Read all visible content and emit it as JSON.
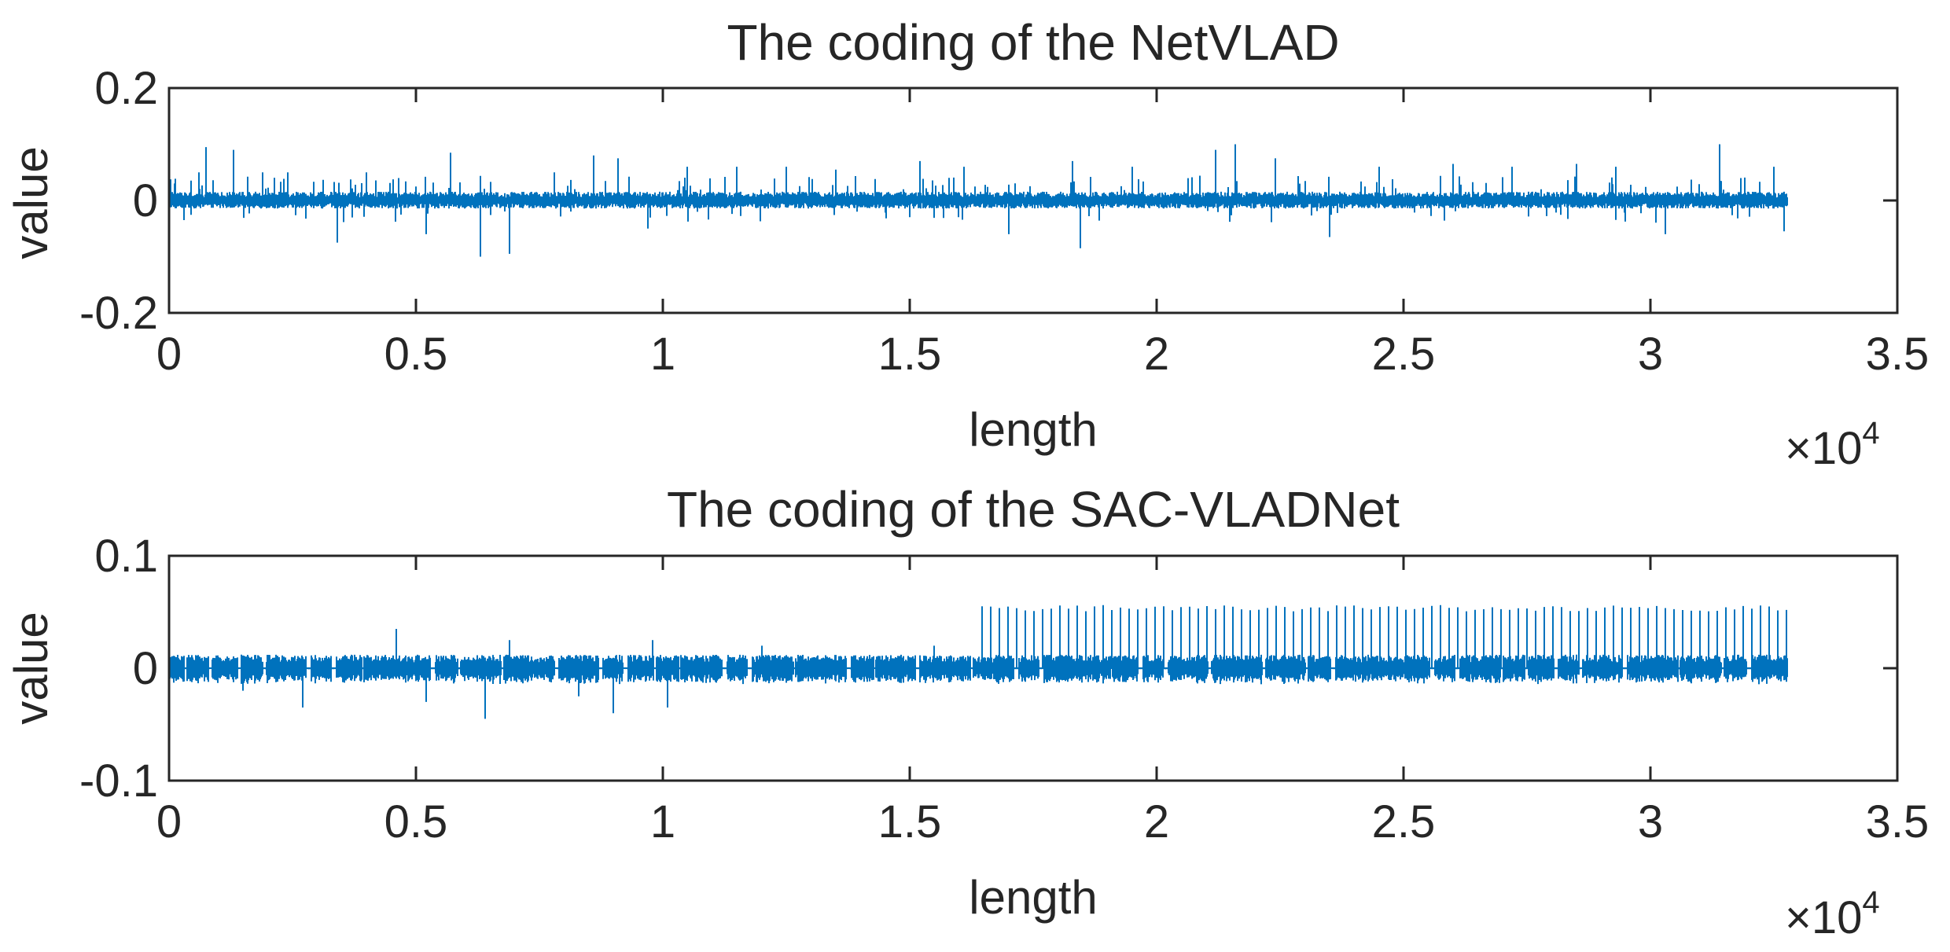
{
  "chart_data": [
    {
      "type": "line",
      "title": "The coding of the NetVLAD",
      "xlabel": "length",
      "ylabel": "value",
      "xlim": [
        0,
        35000
      ],
      "ylim": [
        -0.2,
        0.2
      ],
      "x_ticks": [
        0,
        5000,
        10000,
        15000,
        20000,
        25000,
        30000,
        35000
      ],
      "x_tick_labels": [
        "0",
        "0.5",
        "1",
        "1.5",
        "2",
        "2.5",
        "3",
        "3.5"
      ],
      "x_exponent_label": {
        "base": "×10",
        "exponent": "4"
      },
      "y_ticks": [
        -0.2,
        0,
        0.2
      ],
      "y_tick_labels": [
        "-0.2",
        "0",
        "0.2"
      ],
      "grid": false,
      "series": [
        {
          "name": "NetVLAD coding",
          "color": "#0072BD",
          "x_range": [
            0,
            32768
          ],
          "baseline_noise_amplitude": 0.012,
          "spikes": [
            {
              "x": 300,
              "value": -0.035
            },
            {
              "x": 600,
              "value": 0.05
            },
            {
              "x": 750,
              "value": 0.095
            },
            {
              "x": 1300,
              "value": 0.09
            },
            {
              "x": 1900,
              "value": 0.05
            },
            {
              "x": 2400,
              "value": 0.05
            },
            {
              "x": 3400,
              "value": -0.075
            },
            {
              "x": 4000,
              "value": 0.05
            },
            {
              "x": 5200,
              "value": -0.06
            },
            {
              "x": 5700,
              "value": 0.085
            },
            {
              "x": 6300,
              "value": -0.1
            },
            {
              "x": 6900,
              "value": -0.095
            },
            {
              "x": 7800,
              "value": 0.05
            },
            {
              "x": 8600,
              "value": 0.08
            },
            {
              "x": 9100,
              "value": 0.075
            },
            {
              "x": 9700,
              "value": -0.05
            },
            {
              "x": 10500,
              "value": 0.06
            },
            {
              "x": 11500,
              "value": 0.06
            },
            {
              "x": 12500,
              "value": 0.06
            },
            {
              "x": 13500,
              "value": 0.055
            },
            {
              "x": 15200,
              "value": 0.07
            },
            {
              "x": 16100,
              "value": 0.06
            },
            {
              "x": 17000,
              "value": -0.06
            },
            {
              "x": 18300,
              "value": 0.07
            },
            {
              "x": 18450,
              "value": -0.085
            },
            {
              "x": 19500,
              "value": 0.06
            },
            {
              "x": 21200,
              "value": 0.09
            },
            {
              "x": 21600,
              "value": 0.1
            },
            {
              "x": 22400,
              "value": 0.075
            },
            {
              "x": 23500,
              "value": -0.065
            },
            {
              "x": 24500,
              "value": 0.06
            },
            {
              "x": 26000,
              "value": 0.065
            },
            {
              "x": 27200,
              "value": 0.06
            },
            {
              "x": 28500,
              "value": 0.065
            },
            {
              "x": 29300,
              "value": 0.06
            },
            {
              "x": 30300,
              "value": -0.06
            },
            {
              "x": 31400,
              "value": 0.1
            },
            {
              "x": 32500,
              "value": 0.06
            },
            {
              "x": 32700,
              "value": -0.055
            }
          ]
        }
      ]
    },
    {
      "type": "line",
      "title": "The coding of the SAC-VLADNet",
      "xlabel": "length",
      "ylabel": "value",
      "xlim": [
        0,
        35000
      ],
      "ylim": [
        -0.1,
        0.1
      ],
      "x_ticks": [
        0,
        5000,
        10000,
        15000,
        20000,
        25000,
        30000,
        35000
      ],
      "x_tick_labels": [
        "0",
        "0.5",
        "1",
        "1.5",
        "2",
        "2.5",
        "3",
        "3.5"
      ],
      "x_exponent_label": {
        "base": "×10",
        "exponent": "4"
      },
      "y_ticks": [
        -0.1,
        0,
        0.1
      ],
      "y_tick_labels": [
        "-0.1",
        "0",
        "0.1"
      ],
      "grid": false,
      "series": [
        {
          "name": "SAC-VLADNet coding",
          "color": "#0072BD",
          "x_range": [
            0,
            32768
          ],
          "burst_noise_amplitude": 0.01,
          "periodic_spike_value": 0.055,
          "periodic_spikes_start": 16400,
          "spikes": [
            {
              "x": 1500,
              "value": -0.02
            },
            {
              "x": 2700,
              "value": -0.035
            },
            {
              "x": 4600,
              "value": 0.035
            },
            {
              "x": 5200,
              "value": -0.03
            },
            {
              "x": 6400,
              "value": -0.045
            },
            {
              "x": 6900,
              "value": 0.025
            },
            {
              "x": 8300,
              "value": -0.025
            },
            {
              "x": 9000,
              "value": -0.04
            },
            {
              "x": 9800,
              "value": 0.025
            },
            {
              "x": 10100,
              "value": -0.035
            },
            {
              "x": 12000,
              "value": 0.02
            },
            {
              "x": 15500,
              "value": 0.02
            }
          ]
        }
      ]
    }
  ]
}
